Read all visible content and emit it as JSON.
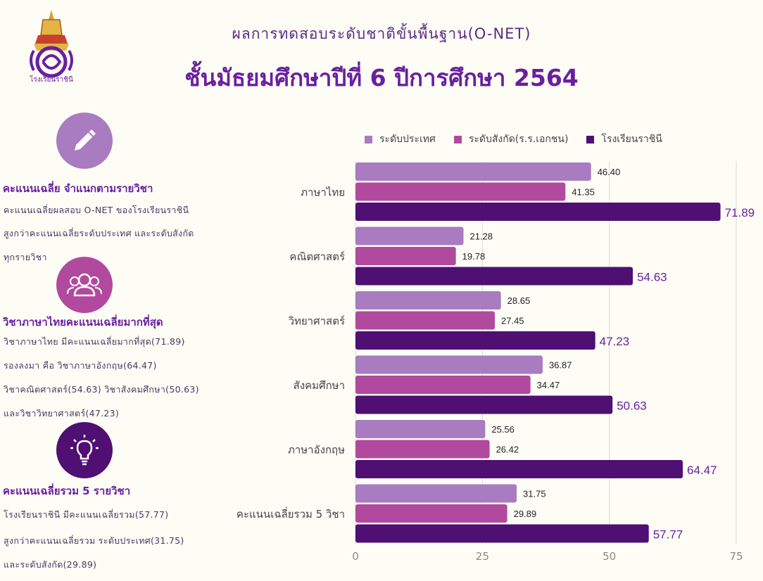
{
  "header": {
    "subtitle": "ผลการทดสอบระดับชาติขั้นพื้นฐาน(O-NET)",
    "title": "ชั้นมัธยมศึกษาปีที่ 6 ปีการศึกษา 2564",
    "logo_text": "โรงเรียนราชินี"
  },
  "sections": [
    {
      "icon": "pencil-icon",
      "heading": "คะแนนเฉลี่ย จำแนกตามรายวิชา",
      "lines": [
        "คะแนนเฉลี่ยผลสอบ O-NET ของโรงเรียนราชินี",
        "สูงกว่าคะแนนเฉลี่ยระดับประเทศ และระดับสังกัด",
        "ทุกรายวิชา"
      ]
    },
    {
      "icon": "group-icon",
      "heading": "วิชาภาษาไทยคะแนนเฉลี่ยมากที่สุด",
      "lines": [
        "วิชาภาษาไทย มีคะแนนเฉลี่ยมากที่สุด(71.89)",
        "รองลงมา คือ วิชาภาษาอังกฤษ(64.47)",
        "วิชาคณิตศาสตร์(54.63) วิชาสังคมศึกษา(50.63)",
        "และวิชาวิทยาศาสตร์(47.23)"
      ]
    },
    {
      "icon": "lightbulb-icon",
      "heading": "คะแนนเฉลี่ยรวม 5 รายวิชา",
      "lines": [
        "โรงเรียนราชินี มีคะแนนเฉลี่ยรวม(57.77)",
        "สูงกว่าคะแนนเฉลี่ยรวม ระดับประเทศ(31.75)",
        "และระดับสังกัด(29.89)"
      ]
    }
  ],
  "colors": {
    "national": "#a97bc0",
    "affiliation": "#b14a9e",
    "school": "#4f0f73",
    "icon1": "#a97bc0",
    "icon2": "#b14a9e",
    "icon3": "#4f0f73"
  },
  "chart_data": {
    "type": "bar",
    "orientation": "horizontal",
    "categories": [
      "ภาษาไทย",
      "คณิตศาสตร์",
      "วิทยาศาสตร์",
      "สังคมศึกษา",
      "ภาษาอังกฤษ",
      "คะแนนเฉลี่ยรวม 5 วิชา"
    ],
    "series": [
      {
        "name": "ระดับประเทศ",
        "color": "#a97bc0",
        "values": [
          46.4,
          21.28,
          28.65,
          36.87,
          25.56,
          31.75
        ]
      },
      {
        "name": "ระดับสังกัด(ร.ร.เอกชน)",
        "color": "#b14a9e",
        "values": [
          41.35,
          19.78,
          27.45,
          34.47,
          26.42,
          29.89
        ]
      },
      {
        "name": "โรงเรียนราชินี",
        "color": "#4f0f73",
        "values": [
          71.89,
          54.63,
          47.23,
          50.63,
          64.47,
          57.77
        ]
      }
    ],
    "value_labels": [
      [
        "46.40",
        "21.28",
        "28.65",
        "36.87",
        "25.56",
        "31.75"
      ],
      [
        "41.35",
        "19.78",
        "27.45",
        "34.47",
        "26.42",
        "29.89"
      ],
      [
        "71.89",
        "54.63",
        "47.23",
        "50.63",
        "64.47",
        "57.77"
      ]
    ],
    "xlim": [
      0,
      75
    ],
    "xticks": [
      0,
      25,
      50,
      75
    ],
    "grid": true,
    "legend": "top"
  }
}
